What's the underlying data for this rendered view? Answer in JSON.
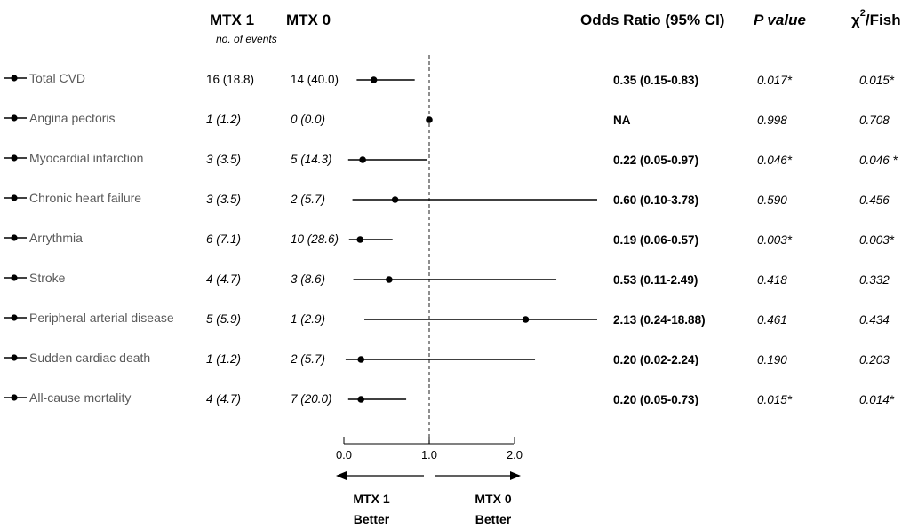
{
  "headers": {
    "mtx1": "MTX 1",
    "mtx0": "MTX 0",
    "events_note": "no. of events",
    "or": "Odds Ratio (95% CI)",
    "p": "P value",
    "chi_symbol": "χ",
    "chi_sup": "2",
    "chi_rest": "/Fish"
  },
  "chart_data": {
    "type": "forest",
    "reference_line": 1.0,
    "xlim": [
      0.0,
      2.0
    ],
    "x_ticks": [
      "0.0",
      "1.0",
      "2.0"
    ],
    "x_tick_values": [
      0.0,
      1.0,
      2.0
    ],
    "direction_left": [
      "MTX 1",
      "Better"
    ],
    "direction_right": [
      "MTX 0",
      "Better"
    ],
    "rows": [
      {
        "label": "Total CVD",
        "mtx1": "16 (18.8)",
        "mtx0": "14 (40.0)",
        "mtx_italic": false,
        "or": 0.35,
        "lo": 0.15,
        "hi": 0.83,
        "or_text": "0.35 (0.15-0.83)",
        "p": "0.017*",
        "chi": "0.015*"
      },
      {
        "label": "Angina pectoris",
        "mtx1": "1 (1.2)",
        "mtx0": "0 (0.0)",
        "mtx_italic": true,
        "or": 1.0,
        "lo": null,
        "hi": null,
        "or_text": "NA",
        "p": "0.998",
        "chi": "0.708"
      },
      {
        "label": "Myocardial infarction",
        "mtx1": "3 (3.5)",
        "mtx0": "5 (14.3)",
        "mtx_italic": true,
        "or": 0.22,
        "lo": 0.05,
        "hi": 0.97,
        "or_text": "0.22 (0.05-0.97)",
        "p": "0.046*",
        "chi": "0.046 *"
      },
      {
        "label": "Chronic heart failure",
        "mtx1": "3 (3.5)",
        "mtx0": "2 (5.7)",
        "mtx_italic": true,
        "or": 0.6,
        "lo": 0.1,
        "hi": 3.78,
        "or_text": "0.60 (0.10-3.78)",
        "p": "0.590",
        "chi": "0.456"
      },
      {
        "label": "Arrythmia",
        "mtx1": "6 (7.1)",
        "mtx0": "10 (28.6)",
        "mtx_italic": true,
        "or": 0.19,
        "lo": 0.06,
        "hi": 0.57,
        "or_text": "0.19 (0.06-0.57)",
        "p": "0.003*",
        "chi": "0.003*"
      },
      {
        "label": "Stroke",
        "mtx1": "4 (4.7)",
        "mtx0": "3 (8.6)",
        "mtx_italic": true,
        "or": 0.53,
        "lo": 0.11,
        "hi": 2.49,
        "or_text": "0.53 (0.11-2.49)",
        "p": "0.418",
        "chi": "0.332"
      },
      {
        "label": "Peripheral arterial disease",
        "mtx1": "5 (5.9)",
        "mtx0": "1 (2.9)",
        "mtx_italic": true,
        "or": 2.13,
        "lo": 0.24,
        "hi": 18.88,
        "or_text": "2.13 (0.24-18.88)",
        "p": "0.461",
        "chi": "0.434"
      },
      {
        "label": "Sudden cardiac death",
        "mtx1": "1 (1.2)",
        "mtx0": "2 (5.7)",
        "mtx_italic": true,
        "or": 0.2,
        "lo": 0.02,
        "hi": 2.24,
        "or_text": "0.20 (0.02-2.24)",
        "p": "0.190",
        "chi": "0.203"
      },
      {
        "label": "All-cause mortality",
        "mtx1": "4 (4.7)",
        "mtx0": "7 (20.0)",
        "mtx_italic": true,
        "or": 0.2,
        "lo": 0.05,
        "hi": 0.73,
        "or_text": "0.20 (0.05-0.73)",
        "p": "0.015*",
        "chi": "0.014*"
      }
    ]
  }
}
